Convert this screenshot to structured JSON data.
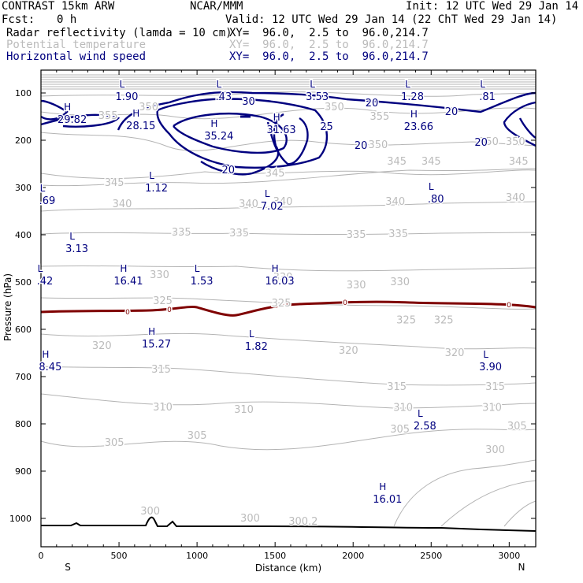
{
  "header": {
    "model": "CONTRAST 15km ARW",
    "center": "NCAR/MMM",
    "init": "Init: 12 UTC Wed 29 Jan 14",
    "fcst_label": "Fcst:",
    "fcst_value": "0 h",
    "valid": "Valid: 12 UTC Wed 29 Jan 14 (22 ChT Wed 29 Jan 14)",
    "fields": [
      {
        "name": "Radar reflectivity (lamda = 10 cm)",
        "xy": "XY=  96.0,  2.5 to  96.0,214.7",
        "color": "#000000"
      },
      {
        "name": "Potential temperature",
        "xy": "XY=  96.0,  2.5 to  96.0,214.7",
        "color": "#bbbbbb"
      },
      {
        "name": "Horizontal wind speed",
        "xy": "XY=  96.0,  2.5 to  96.0,214.7",
        "color": "#00007f"
      }
    ]
  },
  "chart_data": {
    "type": "contour cross-section",
    "xlabel": "Distance (km)",
    "ylabel": "Pressure (hPa)",
    "xlim": [
      0,
      3170
    ],
    "ylim": [
      1045,
      70
    ],
    "x_ticks": [
      "0",
      "500",
      "1000",
      "1500",
      "2000",
      "2500",
      "3000"
    ],
    "y_ticks": [
      "100",
      "200",
      "300",
      "400",
      "500",
      "600",
      "700",
      "800",
      "900",
      "1000"
    ],
    "left_end": "S",
    "right_end": "N",
    "colors": {
      "theta": "#bbbbbb",
      "wind": "#00007f",
      "freezing": "#7f0000",
      "terrain": "#000000"
    },
    "theta_labels": [
      {
        "t": "350",
        "x": 690,
        "p": 130
      },
      {
        "t": "355",
        "x": 430,
        "p": 148
      },
      {
        "t": "350",
        "x": 1880,
        "p": 130
      },
      {
        "t": "355",
        "x": 2170,
        "p": 150
      },
      {
        "t": "350",
        "x": 2160,
        "p": 210
      },
      {
        "t": "350",
        "x": 2870,
        "p": 203
      },
      {
        "t": "350",
        "x": 3040,
        "p": 203
      },
      {
        "t": "345",
        "x": 470,
        "p": 290
      },
      {
        "t": "345",
        "x": 1500,
        "p": 270
      },
      {
        "t": "345",
        "x": 2280,
        "p": 245
      },
      {
        "t": "345",
        "x": 2500,
        "p": 245
      },
      {
        "t": "345",
        "x": 3060,
        "p": 245
      },
      {
        "t": "340",
        "x": 520,
        "p": 335
      },
      {
        "t": "340",
        "x": 1330,
        "p": 335
      },
      {
        "t": "340",
        "x": 1550,
        "p": 330
      },
      {
        "t": "340",
        "x": 2270,
        "p": 330
      },
      {
        "t": "340",
        "x": 3040,
        "p": 322
      },
      {
        "t": "335",
        "x": 900,
        "p": 395
      },
      {
        "t": "335",
        "x": 1270,
        "p": 397
      },
      {
        "t": "335",
        "x": 2020,
        "p": 400
      },
      {
        "t": "335",
        "x": 2290,
        "p": 398
      },
      {
        "t": "330",
        "x": 760,
        "p": 485
      },
      {
        "t": "330",
        "x": 1550,
        "p": 490
      },
      {
        "t": "330",
        "x": 2020,
        "p": 507
      },
      {
        "t": "330",
        "x": 2300,
        "p": 500
      },
      {
        "t": "325",
        "x": 780,
        "p": 540
      },
      {
        "t": "325",
        "x": 1540,
        "p": 545
      },
      {
        "t": "325",
        "x": 2340,
        "p": 581
      },
      {
        "t": "325",
        "x": 2580,
        "p": 581
      },
      {
        "t": "320",
        "x": 390,
        "p": 635
      },
      {
        "t": "320",
        "x": 1970,
        "p": 645
      },
      {
        "t": "320",
        "x": 2650,
        "p": 650
      },
      {
        "t": "315",
        "x": 770,
        "p": 685
      },
      {
        "t": "315",
        "x": 2280,
        "p": 722
      },
      {
        "t": "315",
        "x": 2910,
        "p": 722
      },
      {
        "t": "310",
        "x": 780,
        "p": 765
      },
      {
        "t": "310",
        "x": 1300,
        "p": 770
      },
      {
        "t": "310",
        "x": 2320,
        "p": 766
      },
      {
        "t": "310",
        "x": 2890,
        "p": 766
      },
      {
        "t": "305",
        "x": 1000,
        "p": 825
      },
      {
        "t": "305",
        "x": 470,
        "p": 840
      },
      {
        "t": "305",
        "x": 2300,
        "p": 812
      },
      {
        "t": "305",
        "x": 3050,
        "p": 805
      },
      {
        "t": "300",
        "x": 2910,
        "p": 855
      },
      {
        "t": "300",
        "x": 700,
        "p": 985
      },
      {
        "t": "300",
        "x": 1340,
        "p": 1000
      },
      {
        "t": "300.2",
        "x": 1680,
        "p": 1007
      }
    ],
    "wind_labels": [
      {
        "t": "30",
        "x": 1330,
        "p": 117
      },
      {
        "t": "25",
        "x": 1830,
        "p": 170
      },
      {
        "t": "20",
        "x": 2120,
        "p": 120
      },
      {
        "t": "20",
        "x": 2630,
        "p": 138
      },
      {
        "t": "20",
        "x": 2820,
        "p": 203
      },
      {
        "t": "20",
        "x": 2050,
        "p": 210
      },
      {
        "t": "20",
        "x": 1200,
        "p": 262
      }
    ],
    "extrema": [
      {
        "kind": "L",
        "value": "1.90",
        "x": 550,
        "p": 88
      },
      {
        "kind": "L",
        "value": ".43",
        "x": 1170,
        "p": 88
      },
      {
        "kind": "L",
        "value": "3.53",
        "x": 1770,
        "p": 88
      },
      {
        "kind": "L",
        "value": "1.28",
        "x": 2380,
        "p": 88
      },
      {
        "kind": "L",
        "value": ".81",
        "x": 2860,
        "p": 88
      },
      {
        "kind": "H",
        "value": "29.82",
        "x": 200,
        "p": 137
      },
      {
        "kind": "H",
        "value": "28.15",
        "x": 640,
        "p": 150
      },
      {
        "kind": "H",
        "value": "35.24",
        "x": 1140,
        "p": 172
      },
      {
        "kind": "H",
        "value": "31.63",
        "x": 1540,
        "p": 158
      },
      {
        "kind": "H",
        "value": "23.66",
        "x": 2420,
        "p": 152
      },
      {
        "kind": "L",
        "value": "1.12",
        "x": 740,
        "p": 282
      },
      {
        "kind": "L",
        "value": ".69",
        "x": 40,
        "p": 308
      },
      {
        "kind": "L",
        "value": "7.02",
        "x": 1480,
        "p": 320
      },
      {
        "kind": "L",
        "value": ".80",
        "x": 2530,
        "p": 305
      },
      {
        "kind": "L",
        "value": "3.13",
        "x": 230,
        "p": 410
      },
      {
        "kind": "H",
        "value": "16.41",
        "x": 560,
        "p": 478
      },
      {
        "kind": "L",
        "value": "1.53",
        "x": 1030,
        "p": 478
      },
      {
        "kind": "H",
        "value": "16.03",
        "x": 1530,
        "p": 478
      },
      {
        "kind": "L",
        "value": ".42",
        "x": 25,
        "p": 478
      },
      {
        "kind": "H",
        "value": "15.27",
        "x": 740,
        "p": 612
      },
      {
        "kind": "L",
        "value": "1.82",
        "x": 1380,
        "p": 617
      },
      {
        "kind": "H",
        "value": "8.45",
        "x": 60,
        "p": 660
      },
      {
        "kind": "L",
        "value": "3.90",
        "x": 2880,
        "p": 660
      },
      {
        "kind": "L",
        "value": "2.58",
        "x": 2460,
        "p": 785
      },
      {
        "kind": "H",
        "value": "16.01",
        "x": 2220,
        "p": 940
      }
    ]
  }
}
